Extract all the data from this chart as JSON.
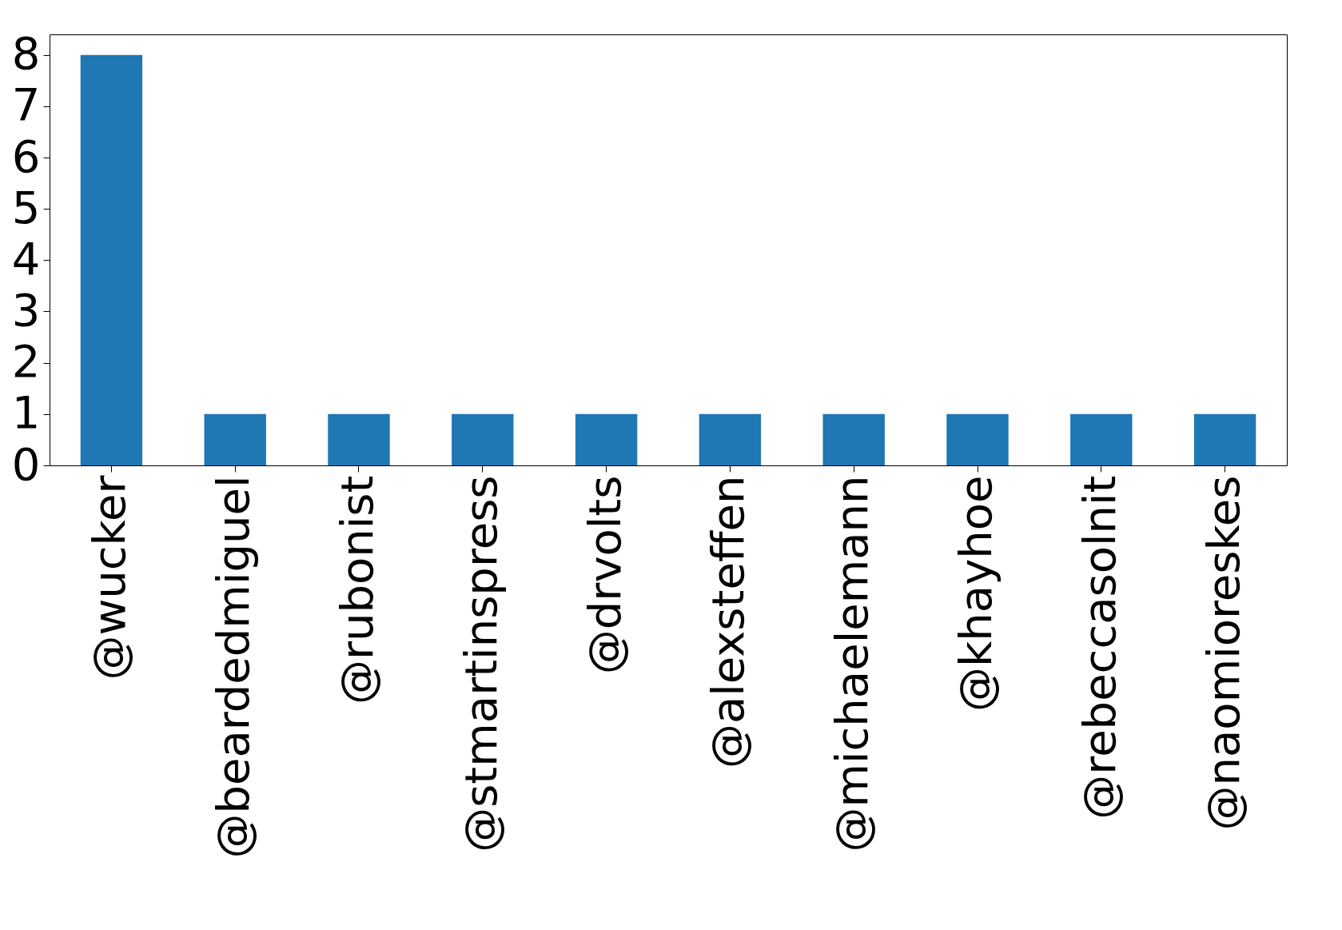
{
  "chart_data": {
    "type": "bar",
    "categories": [
      "@wucker",
      "@beardedmiguel",
      "@rubonist",
      "@stmartinspress",
      "@drvolts",
      "@alexsteffen",
      "@michaelemann",
      "@khayhoe",
      "@rebeccasolnit",
      "@naomioreskes"
    ],
    "values": [
      8,
      1,
      1,
      1,
      1,
      1,
      1,
      1,
      1,
      1
    ],
    "color": "#1f77b4",
    "ylim": [
      0,
      8.4
    ],
    "yticks": [
      0,
      1,
      2,
      3,
      4,
      5,
      6,
      7,
      8
    ],
    "grid": false
  }
}
